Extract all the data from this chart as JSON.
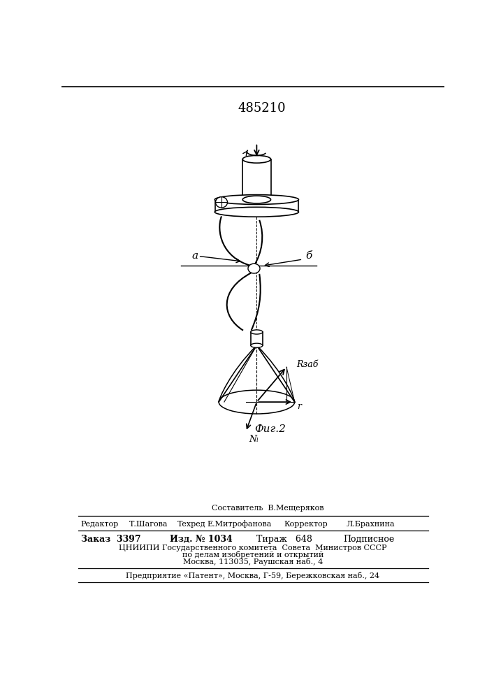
{
  "patent_number": "485210",
  "fig_label": "Фиг.2",
  "label_a": "a",
  "label_b": "б",
  "label_r": "r",
  "label_rzab": "Rзаб",
  "label_nl": "Nₗ",
  "footer_line1_left": "Редактор",
  "footer_line1_col2": "Т.Шагова",
  "footer_line1_col3": "Техред",
  "footer_line1_col4": "Е.Митрофанова",
  "footer_line1_col5": "Корректор",
  "footer_line1_col6": "Л.Брахнина",
  "footer_sostavitel": "Составитель  В.Мещеряков",
  "footer_zakaz": "Заказ  3397",
  "footer_izd": "Изд. № 1034",
  "footer_tirazh": "Тираж   648",
  "footer_podpisnoe": "Подписное",
  "footer_cnipi": "ЦНИИПИ Государственного комитета  Совета  Министров СССР",
  "footer_cnipi2": "по делам изобретений и открытий",
  "footer_cnipi3": "Москва, 113035, Раушская наб., 4",
  "footer_predpr": "Предприятие «Патент», Москва, Г-59, Бережковская наб., 24",
  "bg_color": "#ffffff"
}
